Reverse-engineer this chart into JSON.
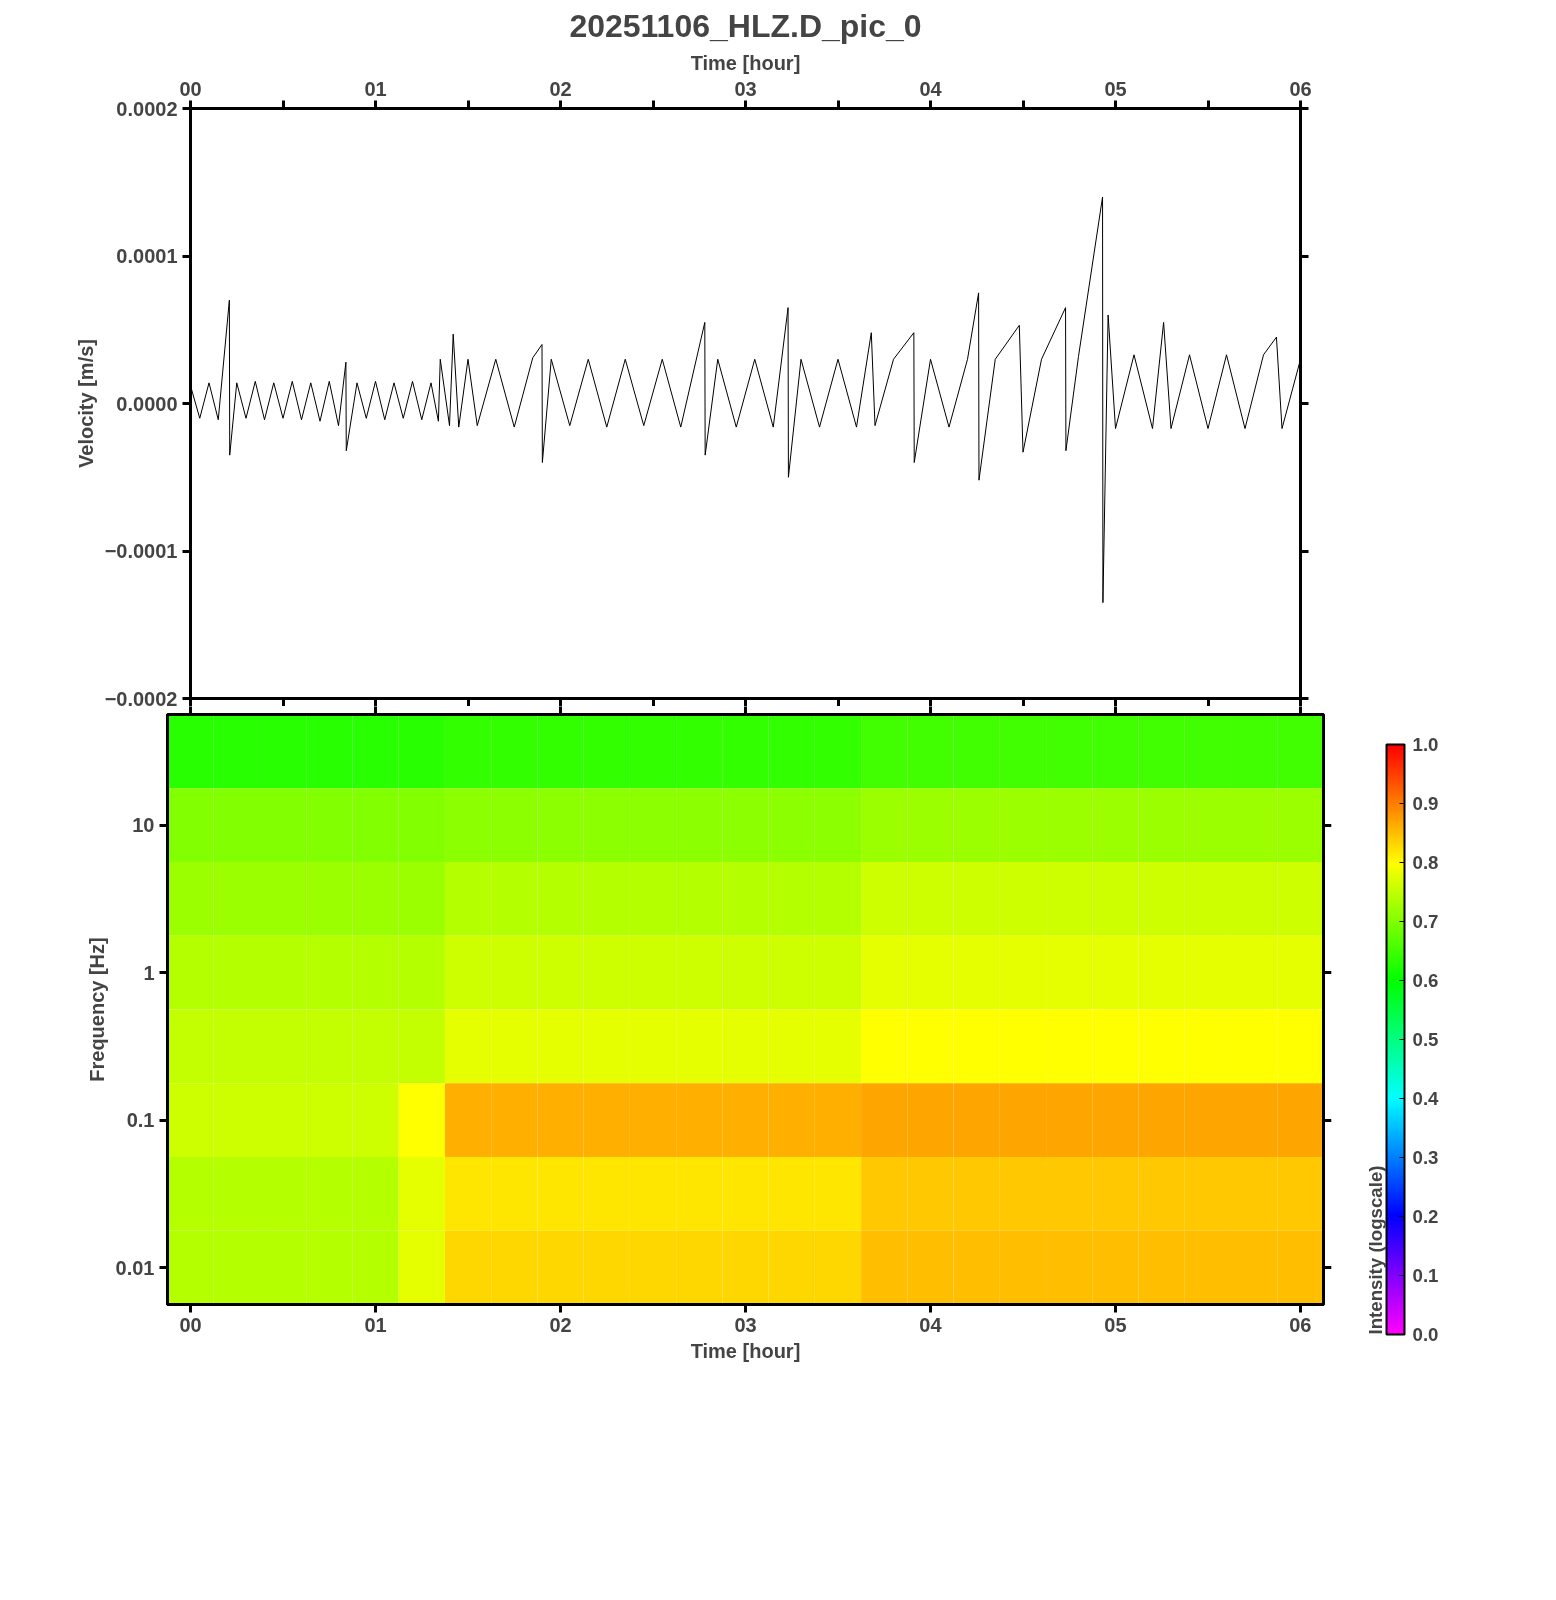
{
  "chart_data": [
    {
      "type": "line",
      "title": "20251106_HLZ.D_pic_0",
      "xlabel": "Time [hour]",
      "ylabel": "Velocity [m/s]",
      "xlim": [
        0,
        6
      ],
      "xticks": [
        {
          "value": 0,
          "label": "00"
        },
        {
          "value": 0.5,
          "label": null
        },
        {
          "value": 1,
          "label": "01"
        },
        {
          "value": 1.5,
          "label": null
        },
        {
          "value": 2,
          "label": "02"
        },
        {
          "value": 2.5,
          "label": null
        },
        {
          "value": 3,
          "label": "03"
        },
        {
          "value": 3.5,
          "label": null
        },
        {
          "value": 4,
          "label": "04"
        },
        {
          "value": 4.5,
          "label": null
        },
        {
          "value": 5,
          "label": "05"
        },
        {
          "value": 5.5,
          "label": null
        },
        {
          "value": 6,
          "label": "06"
        }
      ],
      "ylim": [
        -0.0002,
        0.0002
      ],
      "yticks": [
        {
          "value": -0.0002,
          "label": "−0.0002"
        },
        {
          "value": -0.0001,
          "label": "−0.0001"
        },
        {
          "value": 0,
          "label": "0.0000"
        },
        {
          "value": 0.0001,
          "label": "0.0001"
        },
        {
          "value": 0.0002,
          "label": "0.0002"
        }
      ],
      "series": [
        {
          "color": "#000000",
          "x": [
            0.0,
            0.05,
            0.1,
            0.15,
            0.21,
            0.212,
            0.25,
            0.3,
            0.35,
            0.4,
            0.45,
            0.5,
            0.55,
            0.6,
            0.65,
            0.7,
            0.75,
            0.8,
            0.84,
            0.842,
            0.9,
            0.95,
            1.0,
            1.05,
            1.1,
            1.15,
            1.2,
            1.25,
            1.3,
            1.34,
            1.35,
            1.4,
            1.42,
            1.45,
            1.5,
            1.55,
            1.65,
            1.75,
            1.85,
            1.9,
            1.902,
            1.95,
            2.05,
            2.15,
            2.25,
            2.35,
            2.45,
            2.55,
            2.65,
            2.78,
            2.782,
            2.85,
            2.95,
            3.05,
            3.15,
            3.23,
            3.232,
            3.3,
            3.4,
            3.5,
            3.6,
            3.68,
            3.7,
            3.8,
            3.91,
            3.912,
            4.0,
            4.1,
            4.2,
            4.26,
            4.262,
            4.35,
            4.48,
            4.5,
            4.6,
            4.73,
            4.732,
            4.8,
            4.93,
            4.932,
            4.96,
            5.0,
            5.1,
            5.2,
            5.26,
            5.3,
            5.4,
            5.5,
            5.6,
            5.7,
            5.8,
            5.87,
            5.9,
            6.0
          ],
          "values": [
            1.2e-05,
            -1e-05,
            1.4e-05,
            -1.1e-05,
            7e-05,
            -3.5e-05,
            1.4e-05,
            -1e-05,
            1.5e-05,
            -1.1e-05,
            1.4e-05,
            -1e-05,
            1.5e-05,
            -1.1e-05,
            1.4e-05,
            -1.2e-05,
            1.5e-05,
            -1.5e-05,
            2.8e-05,
            -3.2e-05,
            1.4e-05,
            -1e-05,
            1.5e-05,
            -1.1e-05,
            1.4e-05,
            -1e-05,
            1.5e-05,
            -1.1e-05,
            1.4e-05,
            -1.2e-05,
            3e-05,
            -1.5e-05,
            4.7e-05,
            -1.6e-05,
            3e-05,
            -1.5e-05,
            3e-05,
            -1.6e-05,
            3.1e-05,
            4e-05,
            -4e-05,
            3e-05,
            -1.5e-05,
            3e-05,
            -1.6e-05,
            3e-05,
            -1.5e-05,
            3e-05,
            -1.6e-05,
            5.5e-05,
            -3.5e-05,
            3e-05,
            -1.6e-05,
            3e-05,
            -1.6e-05,
            6.5e-05,
            -5e-05,
            3e-05,
            -1.6e-05,
            3e-05,
            -1.6e-05,
            4.8e-05,
            -1.5e-05,
            3e-05,
            4.8e-05,
            -4e-05,
            3e-05,
            -1.6e-05,
            3e-05,
            7.5e-05,
            -5.2e-05,
            3e-05,
            5.3e-05,
            -3.3e-05,
            3e-05,
            6.5e-05,
            -3.2e-05,
            3.2e-05,
            0.00014,
            -0.000135,
            6e-05,
            -1.7e-05,
            3.3e-05,
            -1.7e-05,
            5.5e-05,
            -1.7e-05,
            3.3e-05,
            -1.7e-05,
            3.3e-05,
            -1.7e-05,
            3.3e-05,
            4.5e-05,
            -1.7e-05,
            3e-05
          ]
        }
      ]
    },
    {
      "type": "heatmap",
      "xlabel": "Time [hour]",
      "ylabel": "Frequency [Hz]",
      "clabel": "Intensity (logscale)",
      "clim": [
        0,
        1
      ],
      "cticks": [
        {
          "value": 0,
          "label": "0.0"
        },
        {
          "value": 0.1,
          "label": "0.1"
        },
        {
          "value": 0.2,
          "label": "0.2"
        },
        {
          "value": 0.3,
          "label": "0.3"
        },
        {
          "value": 0.4,
          "label": "0.4"
        },
        {
          "value": 0.5,
          "label": "0.5"
        },
        {
          "value": 0.6,
          "label": "0.6"
        },
        {
          "value": 0.7,
          "label": "0.7"
        },
        {
          "value": 0.8,
          "label": "0.8"
        },
        {
          "value": 0.9,
          "label": "0.9"
        },
        {
          "value": 1,
          "label": "1.0"
        }
      ],
      "categories": [
        "00",
        null,
        null,
        null,
        "01",
        null,
        null,
        null,
        "02",
        null,
        null,
        null,
        "03",
        null,
        null,
        null,
        "04",
        null,
        null,
        null,
        "05",
        null,
        null,
        null,
        "06"
      ],
      "y_categories": [
        null,
        "10",
        null,
        "1",
        null,
        "0.1",
        null,
        "0.01"
      ],
      "cells": [
        [
          0.63,
          0.63,
          0.63,
          0.63,
          0.63,
          0.63,
          0.64,
          0.64,
          0.64,
          0.64,
          0.64,
          0.64,
          0.64,
          0.64,
          0.64,
          0.65,
          0.65,
          0.65,
          0.65,
          0.65,
          0.65,
          0.65,
          0.65,
          0.65,
          0.65
        ],
        [
          0.7,
          0.7,
          0.7,
          0.7,
          0.7,
          0.7,
          0.71,
          0.71,
          0.71,
          0.71,
          0.71,
          0.71,
          0.71,
          0.71,
          0.71,
          0.72,
          0.72,
          0.72,
          0.72,
          0.72,
          0.72,
          0.72,
          0.72,
          0.72,
          0.72
        ],
        [
          0.72,
          0.72,
          0.72,
          0.72,
          0.72,
          0.72,
          0.74,
          0.74,
          0.74,
          0.74,
          0.74,
          0.74,
          0.74,
          0.74,
          0.74,
          0.76,
          0.76,
          0.76,
          0.76,
          0.76,
          0.76,
          0.76,
          0.76,
          0.76,
          0.76
        ],
        [
          0.74,
          0.74,
          0.74,
          0.74,
          0.74,
          0.74,
          0.76,
          0.76,
          0.76,
          0.76,
          0.76,
          0.76,
          0.76,
          0.76,
          0.76,
          0.78,
          0.78,
          0.78,
          0.78,
          0.78,
          0.78,
          0.78,
          0.78,
          0.78,
          0.78
        ],
        [
          0.75,
          0.75,
          0.75,
          0.75,
          0.75,
          0.75,
          0.78,
          0.78,
          0.78,
          0.78,
          0.78,
          0.78,
          0.78,
          0.78,
          0.78,
          0.8,
          0.8,
          0.8,
          0.8,
          0.8,
          0.8,
          0.8,
          0.8,
          0.8,
          0.8
        ],
        [
          0.76,
          0.76,
          0.76,
          0.76,
          0.76,
          0.8,
          0.86,
          0.86,
          0.86,
          0.86,
          0.86,
          0.86,
          0.86,
          0.86,
          0.86,
          0.87,
          0.87,
          0.87,
          0.87,
          0.87,
          0.87,
          0.87,
          0.87,
          0.87,
          0.87
        ],
        [
          0.74,
          0.74,
          0.74,
          0.74,
          0.74,
          0.78,
          0.82,
          0.82,
          0.82,
          0.82,
          0.82,
          0.82,
          0.82,
          0.82,
          0.82,
          0.84,
          0.84,
          0.84,
          0.84,
          0.84,
          0.84,
          0.84,
          0.84,
          0.84,
          0.84
        ],
        [
          0.74,
          0.74,
          0.74,
          0.74,
          0.74,
          0.78,
          0.83,
          0.83,
          0.83,
          0.83,
          0.83,
          0.83,
          0.83,
          0.83,
          0.83,
          0.85,
          0.85,
          0.85,
          0.85,
          0.85,
          0.85,
          0.85,
          0.85,
          0.85,
          0.85
        ]
      ]
    }
  ]
}
